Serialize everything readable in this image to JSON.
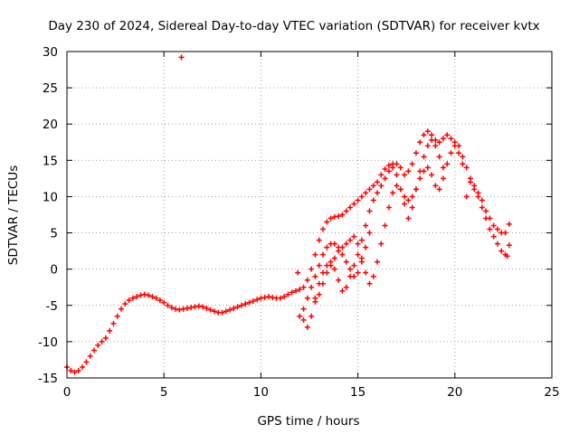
{
  "chart_data": {
    "type": "scatter",
    "title": "Day 230 of 2024, Sidereal Day-to-day VTEC variation (SDTVAR) for receiver kvtx",
    "xlabel": "GPS time / hours",
    "ylabel": "SDTVAR / TECUs",
    "xlim": [
      0,
      25
    ],
    "ylim": [
      -15,
      30
    ],
    "xticks": [
      "0",
      "5",
      "10",
      "15",
      "20",
      "25"
    ],
    "xtick_values": [
      0,
      5,
      10,
      15,
      20,
      25
    ],
    "yticks": [
      "-15",
      "-10",
      "-5",
      "0",
      "5",
      "10",
      "15",
      "20",
      "25",
      "30"
    ],
    "ytick_values": [
      -15,
      -10,
      -5,
      0,
      5,
      10,
      15,
      20,
      25,
      30
    ],
    "grid": true,
    "marker": "plus",
    "color": "#ff0000",
    "series": [
      {
        "name": "main-track",
        "points": [
          [
            0.0,
            -13.5
          ],
          [
            0.2,
            -14.0
          ],
          [
            0.4,
            -14.2
          ],
          [
            0.6,
            -14.0
          ],
          [
            0.8,
            -13.5
          ],
          [
            1.0,
            -12.8
          ],
          [
            1.2,
            -12.0
          ],
          [
            1.4,
            -11.2
          ],
          [
            1.6,
            -10.5
          ],
          [
            1.8,
            -10.0
          ],
          [
            2.0,
            -9.5
          ],
          [
            2.2,
            -8.5
          ],
          [
            2.4,
            -7.5
          ],
          [
            2.6,
            -6.5
          ],
          [
            2.8,
            -5.5
          ],
          [
            3.0,
            -4.8
          ],
          [
            3.2,
            -4.3
          ],
          [
            3.4,
            -4.0
          ],
          [
            3.6,
            -3.8
          ],
          [
            3.8,
            -3.6
          ],
          [
            4.0,
            -3.5
          ],
          [
            4.2,
            -3.6
          ],
          [
            4.4,
            -3.8
          ],
          [
            4.6,
            -4.0
          ],
          [
            4.8,
            -4.3
          ],
          [
            5.0,
            -4.6
          ],
          [
            5.2,
            -5.0
          ],
          [
            5.4,
            -5.3
          ],
          [
            5.6,
            -5.5
          ],
          [
            5.8,
            -5.6
          ],
          [
            6.0,
            -5.5
          ],
          [
            6.2,
            -5.4
          ],
          [
            6.4,
            -5.3
          ],
          [
            6.6,
            -5.2
          ],
          [
            6.8,
            -5.1
          ],
          [
            7.0,
            -5.2
          ],
          [
            7.2,
            -5.4
          ],
          [
            7.4,
            -5.6
          ],
          [
            7.6,
            -5.8
          ],
          [
            7.8,
            -6.0
          ],
          [
            8.0,
            -6.0
          ],
          [
            8.2,
            -5.8
          ],
          [
            8.4,
            -5.6
          ],
          [
            8.6,
            -5.4
          ],
          [
            8.8,
            -5.2
          ],
          [
            9.0,
            -5.0
          ],
          [
            9.2,
            -4.8
          ],
          [
            9.4,
            -4.6
          ],
          [
            9.6,
            -4.4
          ],
          [
            9.8,
            -4.2
          ],
          [
            10.0,
            -4.0
          ],
          [
            10.2,
            -3.9
          ],
          [
            10.4,
            -3.8
          ],
          [
            10.6,
            -3.9
          ],
          [
            10.8,
            -4.0
          ],
          [
            11.0,
            -4.0
          ],
          [
            11.2,
            -3.8
          ],
          [
            11.4,
            -3.5
          ],
          [
            11.6,
            -3.2
          ],
          [
            11.8,
            -3.0
          ],
          [
            12.0,
            -2.8
          ],
          [
            12.2,
            -2.5
          ],
          [
            12.4,
            -1.5
          ],
          [
            12.6,
            0.0
          ],
          [
            12.8,
            2.0
          ],
          [
            13.0,
            4.0
          ],
          [
            13.2,
            5.5
          ],
          [
            13.4,
            6.5
          ],
          [
            13.6,
            7.0
          ],
          [
            13.8,
            7.2
          ],
          [
            14.0,
            7.3
          ],
          [
            14.2,
            7.5
          ],
          [
            14.4,
            8.0
          ],
          [
            14.6,
            8.5
          ],
          [
            14.8,
            9.0
          ],
          [
            15.0,
            9.5
          ],
          [
            15.2,
            10.0
          ],
          [
            15.4,
            10.5
          ],
          [
            15.6,
            11.0
          ],
          [
            15.8,
            11.5
          ],
          [
            16.0,
            12.0
          ],
          [
            16.2,
            13.0
          ],
          [
            16.4,
            13.8
          ],
          [
            16.6,
            14.3
          ],
          [
            16.8,
            14.5
          ],
          [
            17.0,
            14.5
          ],
          [
            17.2,
            14.0
          ],
          [
            17.4,
            13.0
          ],
          [
            17.6,
            13.5
          ],
          [
            17.8,
            14.5
          ],
          [
            18.0,
            16.0
          ],
          [
            18.2,
            17.5
          ],
          [
            18.4,
            18.5
          ],
          [
            18.6,
            19.0
          ],
          [
            18.8,
            18.5
          ],
          [
            19.0,
            17.8
          ],
          [
            19.2,
            17.5
          ],
          [
            19.4,
            18.0
          ],
          [
            19.6,
            18.5
          ],
          [
            19.8,
            18.0
          ],
          [
            20.0,
            17.5
          ],
          [
            20.2,
            17.0
          ],
          [
            20.4,
            15.5
          ],
          [
            20.6,
            14.0
          ],
          [
            20.8,
            12.5
          ],
          [
            21.0,
            11.0
          ],
          [
            21.2,
            10.5
          ],
          [
            21.4,
            9.5
          ],
          [
            21.6,
            8.0
          ],
          [
            21.8,
            7.0
          ],
          [
            22.0,
            6.0
          ],
          [
            22.2,
            5.5
          ],
          [
            22.4,
            5.0
          ],
          [
            22.6,
            5.0
          ]
        ]
      },
      {
        "name": "lower-branch-a",
        "points": [
          [
            12.2,
            -7.0
          ],
          [
            12.4,
            -8.0
          ],
          [
            12.6,
            -6.5
          ],
          [
            12.8,
            -4.0
          ],
          [
            13.0,
            -2.0
          ],
          [
            13.2,
            -0.5
          ],
          [
            13.4,
            0.5
          ],
          [
            13.6,
            1.0
          ],
          [
            13.8,
            0.0
          ],
          [
            14.0,
            -1.5
          ],
          [
            14.2,
            -3.0
          ],
          [
            14.4,
            -2.5
          ],
          [
            14.6,
            -1.0
          ],
          [
            14.8,
            0.5
          ],
          [
            15.0,
            2.0
          ],
          [
            15.2,
            4.0
          ],
          [
            15.4,
            6.0
          ],
          [
            15.6,
            8.0
          ],
          [
            15.8,
            9.5
          ],
          [
            16.0,
            10.5
          ],
          [
            16.2,
            11.5
          ],
          [
            16.4,
            12.5
          ],
          [
            16.6,
            13.5
          ],
          [
            16.8,
            14.0
          ],
          [
            17.0,
            13.0
          ],
          [
            17.2,
            11.0
          ],
          [
            17.4,
            9.0
          ],
          [
            17.6,
            7.0
          ],
          [
            17.8,
            8.5
          ],
          [
            18.0,
            11.0
          ],
          [
            18.2,
            13.5
          ],
          [
            18.4,
            15.5
          ],
          [
            18.6,
            17.0
          ],
          [
            18.8,
            17.8
          ],
          [
            19.0,
            17.0
          ],
          [
            19.2,
            15.5
          ],
          [
            19.4,
            14.0
          ]
        ]
      },
      {
        "name": "lower-branch-b",
        "points": [
          [
            12.8,
            -4.5
          ],
          [
            13.0,
            -3.5
          ],
          [
            13.2,
            -2.0
          ],
          [
            13.4,
            -0.5
          ],
          [
            13.6,
            0.5
          ],
          [
            13.8,
            1.5
          ],
          [
            14.0,
            2.5
          ],
          [
            14.2,
            3.0
          ],
          [
            14.4,
            3.5
          ],
          [
            14.6,
            4.0
          ],
          [
            14.8,
            4.5
          ],
          [
            15.0,
            3.5
          ],
          [
            15.2,
            1.5
          ],
          [
            15.4,
            -0.5
          ],
          [
            15.6,
            -2.0
          ],
          [
            15.8,
            -1.0
          ],
          [
            16.0,
            1.0
          ],
          [
            16.2,
            3.5
          ],
          [
            16.4,
            6.0
          ],
          [
            16.6,
            8.5
          ],
          [
            16.8,
            10.5
          ],
          [
            17.0,
            11.5
          ],
          [
            17.2,
            11.0
          ],
          [
            17.4,
            10.0
          ],
          [
            17.6,
            9.5
          ],
          [
            17.8,
            10.0
          ],
          [
            18.0,
            11.0
          ],
          [
            18.2,
            12.5
          ],
          [
            18.4,
            13.5
          ],
          [
            18.6,
            14.0
          ],
          [
            18.8,
            13.0
          ],
          [
            19.0,
            11.5
          ],
          [
            19.2,
            11.0
          ],
          [
            19.4,
            12.5
          ],
          [
            19.6,
            14.5
          ],
          [
            19.8,
            16.0
          ],
          [
            20.0,
            17.0
          ],
          [
            20.2,
            16.0
          ],
          [
            20.4,
            14.5
          ]
        ]
      },
      {
        "name": "lower-branch-c",
        "points": [
          [
            12.0,
            -6.5
          ],
          [
            12.2,
            -5.5
          ],
          [
            12.4,
            -4.0
          ],
          [
            12.6,
            -2.5
          ],
          [
            12.8,
            -1.0
          ],
          [
            13.0,
            0.5
          ],
          [
            13.2,
            2.0
          ],
          [
            13.4,
            3.0
          ],
          [
            13.6,
            3.5
          ],
          [
            13.8,
            3.5
          ],
          [
            14.0,
            3.0
          ],
          [
            14.2,
            2.0
          ],
          [
            14.4,
            1.0
          ],
          [
            14.6,
            0.0
          ],
          [
            14.8,
            -1.0
          ],
          [
            15.0,
            -0.5
          ],
          [
            15.2,
            1.0
          ],
          [
            15.4,
            3.0
          ],
          [
            15.6,
            5.0
          ]
        ]
      },
      {
        "name": "late-tail",
        "points": [
          [
            20.6,
            10.0
          ],
          [
            20.8,
            12.0
          ],
          [
            21.0,
            11.5
          ],
          [
            21.2,
            10.0
          ],
          [
            21.4,
            8.5
          ],
          [
            21.6,
            7.0
          ],
          [
            21.8,
            5.5
          ],
          [
            22.0,
            4.5
          ],
          [
            22.2,
            3.5
          ],
          [
            22.4,
            2.5
          ],
          [
            22.6,
            2.0
          ],
          [
            22.7,
            1.8
          ]
        ]
      },
      {
        "name": "outliers",
        "points": [
          [
            5.9,
            29.2
          ],
          [
            11.9,
            -0.5
          ],
          [
            22.8,
            6.2
          ],
          [
            22.8,
            3.3
          ]
        ]
      }
    ]
  }
}
